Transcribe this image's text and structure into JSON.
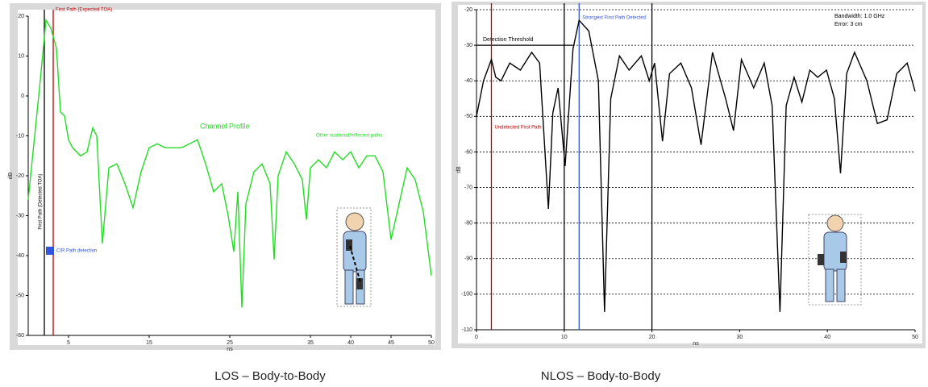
{
  "chart_data": [
    {
      "type": "line",
      "caption": "LOS – Body-to-Body",
      "y_label": "dB",
      "x_label": "ns",
      "xlim": [
        0,
        50
      ],
      "xticks": [
        5,
        15,
        25,
        35,
        40,
        45,
        50
      ],
      "ylim": [
        -60,
        20
      ],
      "yticks": [
        20,
        10,
        0,
        -10,
        -20,
        -30,
        -40,
        -50,
        -60
      ],
      "grid": false,
      "series": [
        {
          "name": "Channel Profile",
          "color": "#22dd22",
          "x": [
            0,
            1,
            1.5,
            2.2,
            2.8,
            3.5,
            4,
            4.5,
            5,
            5.5,
            6.5,
            7.3,
            8,
            8.5,
            9.2,
            10,
            11,
            12,
            13,
            14,
            15,
            16,
            17,
            18,
            19,
            20,
            21,
            22,
            23,
            24,
            24.8,
            25.5,
            26,
            26.5,
            27,
            28,
            29,
            30,
            30.5,
            31,
            32,
            33,
            34,
            34.5,
            35,
            36,
            37,
            38,
            39,
            40,
            41,
            42,
            43,
            44,
            45,
            46,
            47,
            48,
            49,
            50
          ],
          "values": [
            -26,
            -6,
            4,
            19,
            17,
            12,
            -4,
            -5,
            -11,
            -13,
            -15,
            -14,
            -8,
            -10,
            -37,
            -18,
            -17,
            -22,
            -28,
            -19,
            -13,
            -12,
            -13,
            -13,
            -13,
            -12,
            -11,
            -17,
            -24,
            -22,
            -30,
            -39,
            -24,
            -53,
            -27,
            -19,
            -17,
            -22,
            -41,
            -20,
            -14,
            -17,
            -21,
            -31,
            -18,
            -16,
            -18,
            -14,
            -16,
            -14,
            -18,
            -15,
            -15,
            -19,
            -36,
            -27,
            -18,
            -21,
            -29,
            -45
          ]
        }
      ],
      "markers": [
        {
          "x": 2,
          "color": "#000000",
          "label": "First Path (Detected TOA)"
        },
        {
          "x": 3.1,
          "color": "#c00000",
          "label": "First Path (Expected TOA)"
        }
      ],
      "annotations": [
        {
          "text": "Channel Profile",
          "color": "#22dd22"
        },
        {
          "text": "Other scattered/reflected paths",
          "color": "#22dd22"
        },
        {
          "text": "CIR Path detection",
          "color": "#3355dd"
        }
      ]
    },
    {
      "type": "line",
      "caption": "NLOS – Body-to-Body",
      "y_label": "dB",
      "x_label": "ns",
      "xlim": [
        0,
        50
      ],
      "xticks": [
        0,
        10,
        20,
        30,
        40,
        50
      ],
      "ylim": [
        -110,
        -20
      ],
      "yticks": [
        -20,
        -30,
        -40,
        -50,
        -60,
        -70,
        -80,
        -90,
        -100,
        -110
      ],
      "grid": true,
      "series": [
        {
          "name": "NLOS profile",
          "color": "#000000",
          "x": [
            0,
            0.8,
            1.7,
            2.2,
            2.8,
            3.8,
            5,
            6.3,
            7.2,
            8.2,
            8.7,
            9.3,
            10.1,
            11,
            11.7,
            12.8,
            13.9,
            14.6,
            15.3,
            16.3,
            17.4,
            18.8,
            19.7,
            20.3,
            21.2,
            22,
            23.3,
            24.5,
            25.6,
            26.9,
            28.4,
            29.3,
            30.2,
            31.6,
            32.8,
            33.7,
            34.6,
            35.3,
            36.2,
            37.1,
            38,
            38.9,
            39.9,
            40.8,
            41.5,
            42.2,
            43.1,
            44.5,
            45.7,
            46.8,
            47.9,
            49.1,
            50
          ],
          "values": [
            -50,
            -40,
            -34,
            -39,
            -40,
            -35,
            -37,
            -32,
            -35,
            -76,
            -49,
            -42,
            -64,
            -31,
            -23,
            -26,
            -40,
            -105,
            -45,
            -33,
            -37,
            -33,
            -40,
            -35,
            -57,
            -38,
            -35,
            -42,
            -58,
            -32,
            -45,
            -54,
            -34,
            -42,
            -35,
            -47,
            -105,
            -47,
            -39,
            -46,
            -37,
            -39,
            -37,
            -45,
            -66,
            -38,
            -32,
            -40,
            -52,
            -51,
            -38,
            -35,
            -43
          ]
        }
      ],
      "markers": [
        {
          "x": 1.7,
          "color": "#c00000",
          "label": "Undetected First Path"
        },
        {
          "x": 11.7,
          "color": "#3355dd",
          "label": "Strongest First Path Detected"
        },
        {
          "x": 10,
          "color": "#000000"
        },
        {
          "x": 20,
          "color": "#000000"
        }
      ],
      "threshold": {
        "y": -30,
        "label": "Detection Threshold"
      },
      "annotations": [
        {
          "text": "Bandwidth: 1.0 GHz",
          "color": "#000000"
        },
        {
          "text": "Error: 3 cm",
          "color": "#000000"
        }
      ]
    }
  ]
}
